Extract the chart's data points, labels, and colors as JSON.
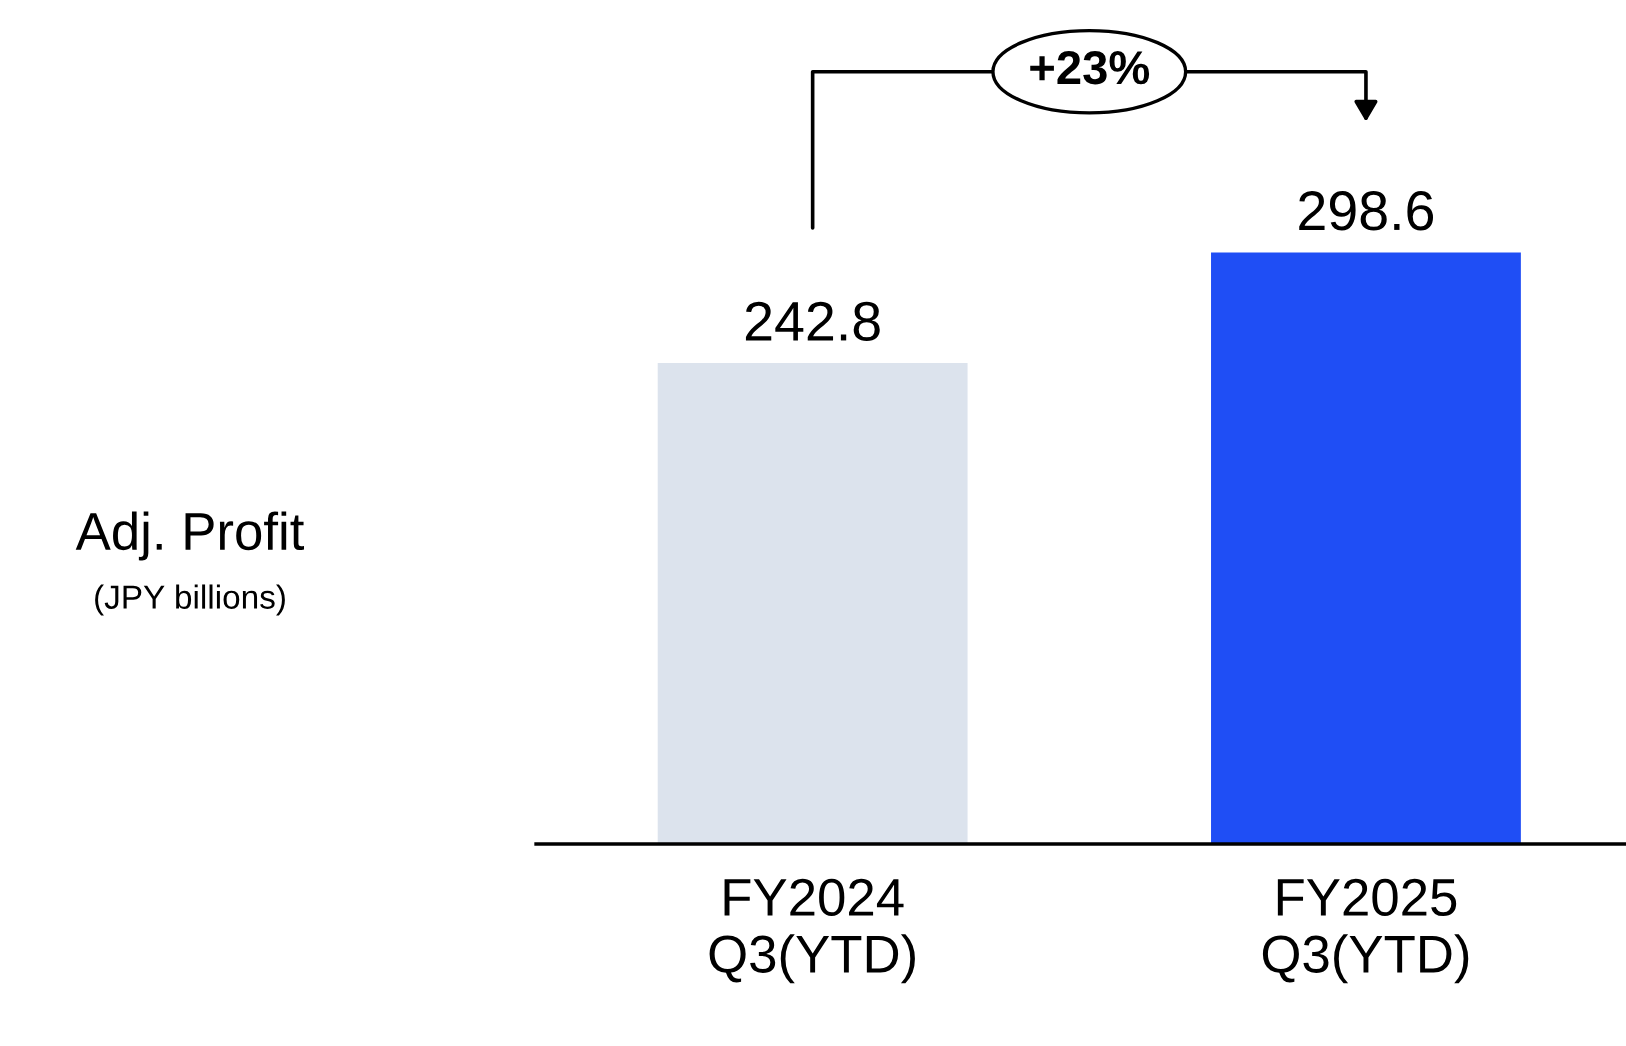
{
  "chart_data": {
    "type": "bar",
    "ylabel": "Adj. Profit",
    "annotations": [
      "(JPY billions)",
      "+23%"
    ],
    "categories": [
      "FY2024\nQ3(YTD)",
      "FY2025\nQ3(YTD)"
    ],
    "values": [
      242.8,
      298.6
    ],
    "colors": [
      "#dce3ed",
      "#1f4ef5"
    ],
    "data_labels": true,
    "grid": false,
    "legend": false
  }
}
